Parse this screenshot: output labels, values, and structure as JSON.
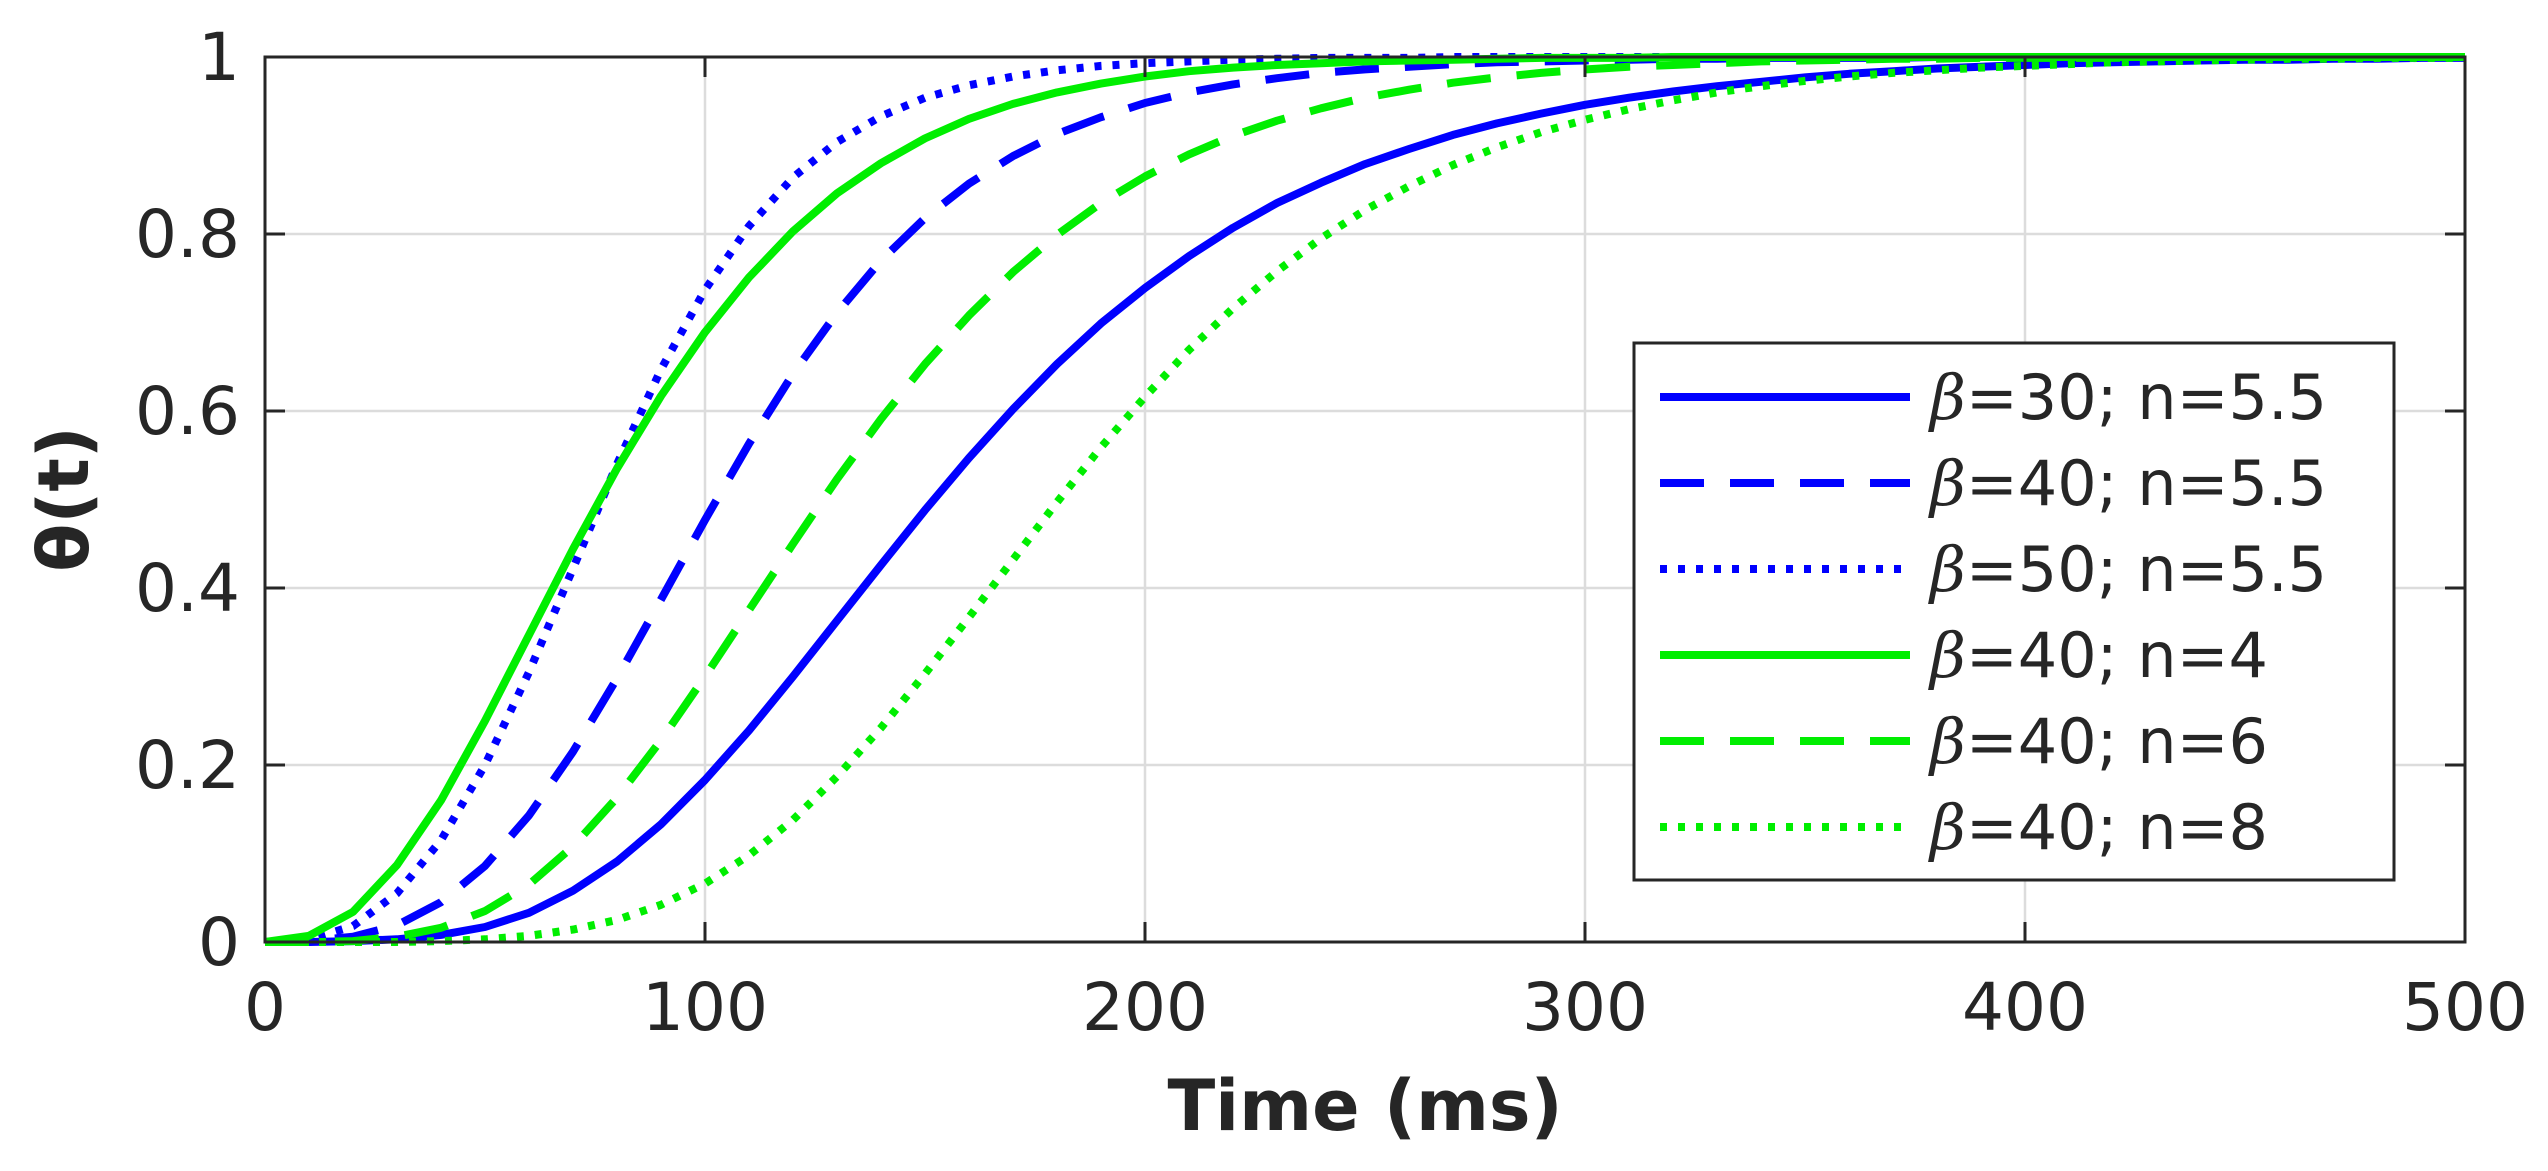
{
  "chart_data": {
    "type": "line",
    "title": "",
    "xlabel": "Time (ms)",
    "ylabel": "θ(t)",
    "xlim": [
      0,
      500
    ],
    "ylim": [
      0,
      1
    ],
    "x_ticks": [
      0,
      100,
      200,
      300,
      400,
      500
    ],
    "y_ticks": [
      0,
      0.2,
      0.4,
      0.6,
      0.8,
      1
    ],
    "x_tick_labels": [
      "0",
      "100",
      "200",
      "300",
      "400",
      "500"
    ],
    "y_tick_labels": [
      "0",
      "0.2",
      "0.4",
      "0.6",
      "0.8",
      "1"
    ],
    "grid": true,
    "legend_position": "center-right",
    "x": [
      0,
      10,
      20,
      30,
      40,
      50,
      60,
      70,
      80,
      90,
      100,
      110,
      120,
      130,
      140,
      150,
      160,
      170,
      180,
      190,
      200,
      210,
      220,
      230,
      240,
      250,
      260,
      270,
      280,
      290,
      300,
      310,
      320,
      330,
      340,
      350,
      360,
      370,
      380,
      390,
      400,
      410,
      420,
      430,
      440,
      450,
      460,
      470,
      480,
      490,
      500
    ],
    "series": [
      {
        "name": "β=30; n=5.5",
        "greek": "β",
        "rest": "=30; n=5.5",
        "color": "#0000ff",
        "dash": "solid",
        "values": [
          0.0,
          0.0,
          0.001,
          0.003,
          0.008,
          0.017,
          0.033,
          0.058,
          0.091,
          0.133,
          0.183,
          0.239,
          0.3,
          0.363,
          0.426,
          0.488,
          0.547,
          0.602,
          0.653,
          0.699,
          0.739,
          0.775,
          0.807,
          0.835,
          0.858,
          0.879,
          0.896,
          0.912,
          0.925,
          0.936,
          0.946,
          0.954,
          0.961,
          0.967,
          0.972,
          0.977,
          0.981,
          0.984,
          0.987,
          0.989,
          0.991,
          0.993,
          0.994,
          0.995,
          0.996,
          0.997,
          0.997,
          0.998,
          0.998,
          0.999,
          0.999
        ]
      },
      {
        "name": "β=40; n=5.5",
        "greek": "β",
        "rest": "=40; n=5.5",
        "color": "#0000ff",
        "dash": "dashed",
        "values": [
          0.0,
          0.001,
          0.006,
          0.019,
          0.045,
          0.086,
          0.143,
          0.215,
          0.298,
          0.387,
          0.477,
          0.563,
          0.642,
          0.711,
          0.77,
          0.818,
          0.857,
          0.888,
          0.913,
          0.932,
          0.948,
          0.96,
          0.969,
          0.976,
          0.982,
          0.986,
          0.989,
          0.992,
          0.994,
          0.995,
          0.996,
          0.997,
          0.998,
          0.998,
          0.999,
          0.999,
          0.999,
          0.999,
          1.0,
          1.0,
          1.0,
          1.0,
          1.0,
          1.0,
          1.0,
          1.0,
          1.0,
          1.0,
          1.0,
          1.0,
          1.0
        ]
      },
      {
        "name": "β=50; n=5.5",
        "greek": "β",
        "rest": "=50; n=5.5",
        "color": "#0000ff",
        "dash": "dotted",
        "values": [
          0.0,
          0.003,
          0.018,
          0.055,
          0.115,
          0.2,
          0.305,
          0.422,
          0.54,
          0.647,
          0.737,
          0.809,
          0.864,
          0.904,
          0.933,
          0.954,
          0.968,
          0.978,
          0.985,
          0.99,
          0.993,
          0.995,
          0.997,
          0.998,
          0.999,
          0.999,
          0.999,
          1.0,
          1.0,
          1.0,
          1.0,
          1.0,
          1.0,
          1.0,
          1.0,
          1.0,
          1.0,
          1.0,
          1.0,
          1.0,
          1.0,
          1.0,
          1.0,
          1.0,
          1.0,
          1.0,
          1.0,
          1.0,
          1.0,
          1.0,
          1.0
        ]
      },
      {
        "name": "β=40; n=4",
        "greek": "β",
        "rest": "=40; n=4",
        "color": "#00ee00",
        "dash": "solid",
        "values": [
          0.0,
          0.007,
          0.034,
          0.087,
          0.16,
          0.25,
          0.347,
          0.444,
          0.535,
          0.617,
          0.689,
          0.751,
          0.803,
          0.846,
          0.88,
          0.908,
          0.93,
          0.947,
          0.96,
          0.97,
          0.978,
          0.984,
          0.988,
          0.991,
          0.993,
          0.995,
          0.996,
          0.997,
          0.998,
          0.999,
          0.999,
          0.999,
          1.0,
          1.0,
          1.0,
          1.0,
          1.0,
          1.0,
          1.0,
          1.0,
          1.0,
          1.0,
          1.0,
          1.0,
          1.0,
          1.0,
          1.0,
          1.0,
          1.0,
          1.0,
          1.0
        ]
      },
      {
        "name": "β=40; n=6",
        "greek": "β",
        "rest": "=40; n=6",
        "color": "#00ee00",
        "dash": "dashed",
        "values": [
          0.0,
          0.0,
          0.001,
          0.006,
          0.016,
          0.035,
          0.065,
          0.108,
          0.163,
          0.228,
          0.3,
          0.375,
          0.45,
          0.523,
          0.591,
          0.653,
          0.708,
          0.757,
          0.799,
          0.835,
          0.865,
          0.89,
          0.911,
          0.928,
          0.942,
          0.954,
          0.963,
          0.971,
          0.977,
          0.982,
          0.986,
          0.989,
          0.991,
          0.993,
          0.995,
          0.996,
          0.997,
          0.998,
          0.998,
          0.999,
          0.999,
          0.999,
          0.999,
          1.0,
          1.0,
          1.0,
          1.0,
          1.0,
          1.0,
          1.0,
          1.0
        ]
      },
      {
        "name": "β=40; n=8",
        "greek": "β",
        "rest": "=40; n=8",
        "color": "#00ee00",
        "dash": "dotted",
        "values": [
          0.0,
          0.0,
          0.0,
          0.0,
          0.001,
          0.003,
          0.007,
          0.014,
          0.025,
          0.042,
          0.066,
          0.098,
          0.138,
          0.187,
          0.242,
          0.303,
          0.367,
          0.432,
          0.497,
          0.559,
          0.616,
          0.669,
          0.716,
          0.758,
          0.795,
          0.827,
          0.854,
          0.878,
          0.898,
          0.915,
          0.929,
          0.941,
          0.951,
          0.96,
          0.967,
          0.973,
          0.978,
          0.982,
          0.985,
          0.988,
          0.99,
          0.992,
          0.994,
          0.995,
          0.996,
          0.997,
          0.998,
          0.998,
          0.999,
          0.999,
          0.999
        ]
      }
    ]
  }
}
